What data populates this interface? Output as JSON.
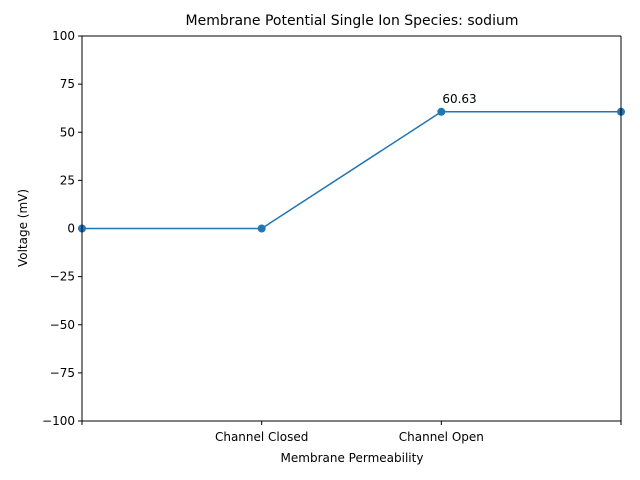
{
  "chart_data": {
    "type": "line",
    "title": "Membrane Potential Single Ion Species: sodium",
    "xlabel": "Membrane Permeability",
    "ylabel": "Voltage (mV)",
    "x": [
      0,
      1,
      2,
      3
    ],
    "xlim": [
      0,
      3
    ],
    "xticks": [
      {
        "value": 0,
        "label": ""
      },
      {
        "value": 1,
        "label": "Channel Closed"
      },
      {
        "value": 2,
        "label": "Channel Open"
      },
      {
        "value": 3,
        "label": ""
      }
    ],
    "ylim": [
      -100,
      100
    ],
    "yticks": [
      -100,
      -75,
      -50,
      -25,
      0,
      25,
      50,
      75,
      100
    ],
    "series": [
      {
        "name": "sodium",
        "values": [
          0,
          0,
          60.63,
          60.63
        ],
        "color": "#1f77b4",
        "marker": "circle"
      }
    ],
    "annotations": [
      {
        "x": 2,
        "y": 60.63,
        "text": "60.63"
      }
    ],
    "grid": false,
    "legend": "none"
  }
}
